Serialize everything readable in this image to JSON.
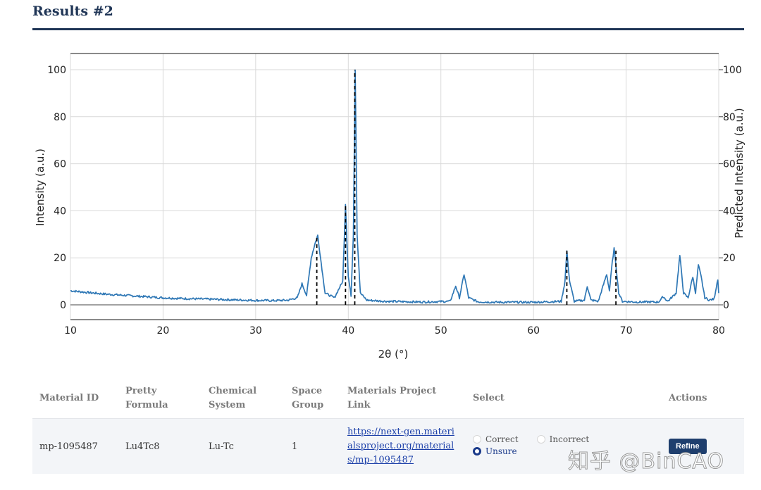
{
  "section_title": "Results #2",
  "chart_data": {
    "type": "line",
    "xlabel": "2θ (°)",
    "ylabel": "Intensity (a.u.)",
    "ylabel_right": "Predicted Intensity (a.u.)",
    "xlim": [
      10,
      80
    ],
    "ylim": [
      0,
      100
    ],
    "x_ticks": [
      10,
      20,
      30,
      40,
      50,
      60,
      70,
      80
    ],
    "y_ticks": [
      0,
      20,
      40,
      60,
      80,
      100
    ],
    "grid": true,
    "line_color": "#2e77b5",
    "stick_color": "#000000",
    "series": [
      {
        "style": "solid",
        "x": [
          10,
          12,
          14,
          16,
          18,
          20,
          22,
          24,
          26,
          28,
          30,
          32,
          33.5,
          34.5,
          35,
          35.5,
          36,
          36.4,
          36.7,
          37,
          37.5,
          38.5,
          39.4,
          39.7,
          40,
          40.3,
          40.55,
          40.75,
          40.95,
          41.3,
          42,
          44,
          48,
          51,
          51.6,
          52,
          52.5,
          53,
          54,
          56,
          60,
          63,
          63.4,
          63.6,
          63.9,
          64.4,
          65.5,
          65.8,
          66.2,
          67,
          67.9,
          68.2,
          68.5,
          68.7,
          68.9,
          69.2,
          69.6,
          71,
          73.5,
          74,
          74.5,
          75.4,
          75.8,
          76.2,
          76.7,
          77.2,
          77.5,
          77.8,
          78.1,
          78.5,
          79,
          79.5,
          79.9,
          80
        ],
        "y": [
          6,
          5.2,
          4.5,
          4,
          3.5,
          3,
          2.7,
          2.5,
          2.3,
          2.1,
          1.9,
          1.8,
          2,
          3,
          9,
          4,
          20,
          26,
          29.5,
          20,
          5,
          3,
          10,
          43,
          12,
          4,
          30,
          100,
          30,
          5,
          2,
          1.5,
          1.2,
          1.5,
          8,
          3,
          13,
          3,
          1.3,
          1.1,
          1.1,
          1.5,
          10,
          23,
          10,
          1.5,
          2,
          8,
          2,
          1.5,
          13,
          6,
          18,
          24,
          17,
          5,
          1.5,
          1.2,
          1.2,
          3.5,
          1.5,
          5,
          21,
          5,
          3,
          12,
          5,
          17,
          12,
          3,
          2,
          2.5,
          11,
          5
        ]
      },
      {
        "style": "stick",
        "x": [
          36.6,
          39.7,
          40.7,
          63.6,
          68.9
        ],
        "y": [
          29,
          43,
          100,
          23,
          23
        ]
      }
    ]
  },
  "table": {
    "headers": [
      "Material ID",
      "Pretty Formula",
      "Chemical System",
      "Space Group",
      "Materials Project Link",
      "Select",
      "Actions"
    ],
    "row": {
      "material_id": "mp-1095487",
      "formula": "Lu4Tc8",
      "chem_system": "Lu-Tc",
      "space_group": "1",
      "link_text": "https://next-gen.materialsproject.org/materials/mp-1095487",
      "options": [
        "Correct",
        "Incorrect",
        "Unsure"
      ],
      "selected": "Unsure",
      "action": "Refine"
    }
  },
  "watermark": "知乎 @BinCAO"
}
